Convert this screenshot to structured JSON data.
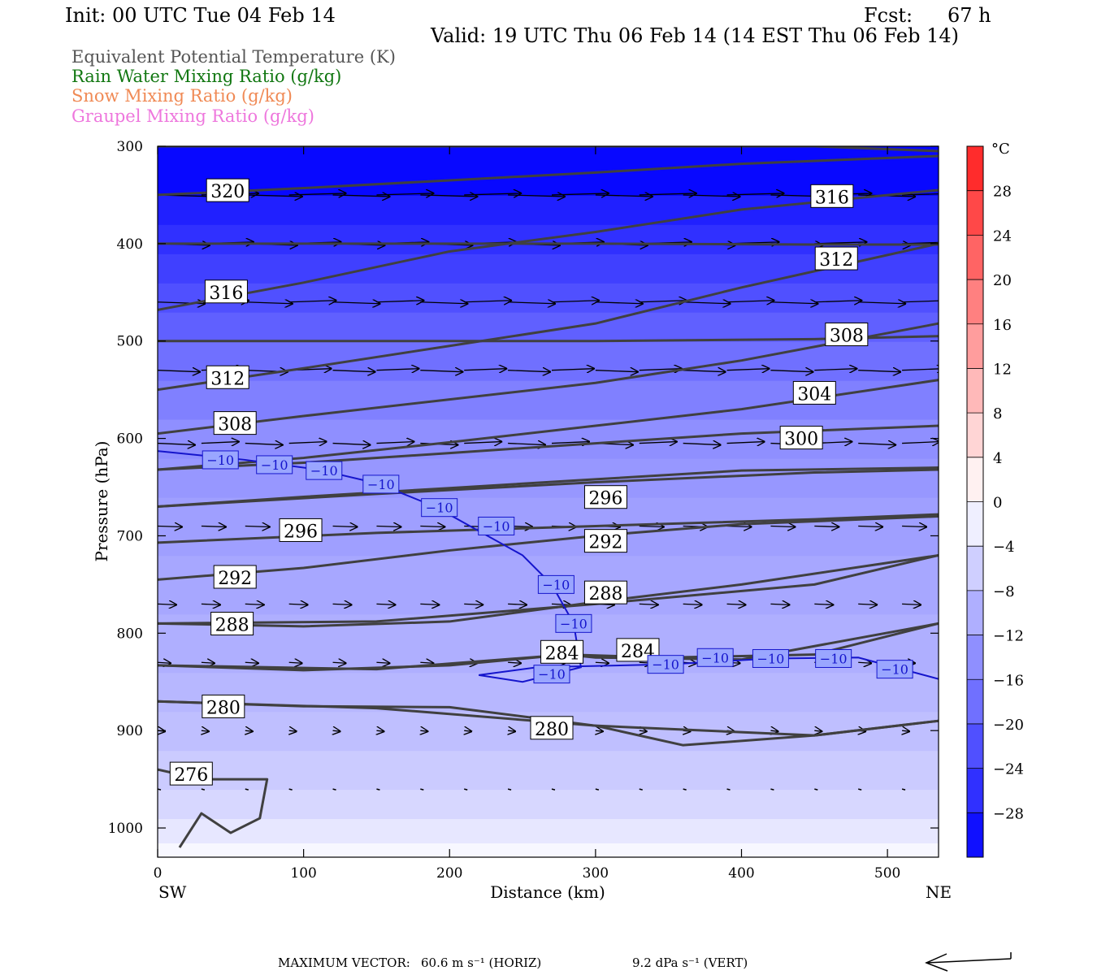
{
  "header": {
    "init": "Init: 00 UTC Tue 04 Feb 14",
    "fcst_label": "Fcst:",
    "fcst_value": "67 h",
    "valid": "Valid: 19 UTC Thu 06 Feb 14 (14 EST Thu 06 Feb 14)"
  },
  "legend": [
    {
      "text": "Equivalent Potential Temperature (K)",
      "color": "#555555"
    },
    {
      "text": "Rain Water Mixing Ratio (g/kg)",
      "color": "#117711"
    },
    {
      "text": "Snow Mixing Ratio (g/kg)",
      "color": "#f08a55"
    },
    {
      "text": "Graupel Mixing Ratio (g/kg)",
      "color": "#ee77dd"
    }
  ],
  "footer": {
    "max_vector_label": "MAXIMUM VECTOR:",
    "horiz": "60.6 m s⁻¹ (HORIZ)",
    "vert": "9.2 dPa s⁻¹ (VERT)"
  },
  "chart_data": {
    "type": "contour_cross_section",
    "xlabel": "Distance (km)",
    "ylabel": "Pressure (hPa)",
    "xlim": [
      0,
      535
    ],
    "ylim": [
      1030,
      300
    ],
    "x_ticks": [
      0,
      100,
      200,
      300,
      400,
      500
    ],
    "y_ticks": [
      300,
      400,
      500,
      600,
      700,
      800,
      900,
      1000
    ],
    "x_end_labels": {
      "left": "SW",
      "right": "NE"
    },
    "colorbar": {
      "unit": "°C",
      "tick_labels": [
        "28",
        "24",
        "20",
        "16",
        "12",
        "8",
        "4",
        "0",
        "−4",
        "−8",
        "−12",
        "−16",
        "−20",
        "−24",
        "−28"
      ],
      "tick_values": [
        28,
        24,
        20,
        16,
        12,
        8,
        4,
        0,
        -4,
        -8,
        -12,
        -16,
        -20,
        -24,
        -28
      ],
      "range": [
        -32,
        32
      ]
    },
    "temperature_bands_by_pressure": [
      {
        "p": 1030,
        "t": -1
      },
      {
        "p": 1015,
        "t": -3
      },
      {
        "p": 990,
        "t": -5
      },
      {
        "p": 960,
        "t": -6.5
      },
      {
        "p": 920,
        "t": -8
      },
      {
        "p": 880,
        "t": -9
      },
      {
        "p": 840,
        "t": -10
      },
      {
        "p": 780,
        "t": -11
      },
      {
        "p": 720,
        "t": -12
      },
      {
        "p": 660,
        "t": -13
      },
      {
        "p": 620,
        "t": -14
      },
      {
        "p": 580,
        "t": -16
      },
      {
        "p": 540,
        "t": -18
      },
      {
        "p": 500,
        "t": -20
      },
      {
        "p": 470,
        "t": -22
      },
      {
        "p": 440,
        "t": -24
      },
      {
        "p": 410,
        "t": -26
      },
      {
        "p": 380,
        "t": -28
      },
      {
        "p": 350,
        "t": -31
      },
      {
        "p": 300,
        "t": -33
      }
    ],
    "theta_e_contours": [
      {
        "label": "320",
        "points": [
          [
            0,
            350
          ],
          [
            100,
            343
          ],
          [
            200,
            335
          ],
          [
            300,
            327
          ],
          [
            400,
            318
          ],
          [
            535,
            310
          ]
        ],
        "label_at": [
          48,
          346
        ]
      },
      {
        "label": "316",
        "points": [
          [
            0,
            468
          ],
          [
            100,
            440
          ],
          [
            200,
            408
          ],
          [
            300,
            388
          ],
          [
            400,
            365
          ],
          [
            535,
            345
          ]
        ],
        "label_at": [
          47,
          450
        ]
      },
      {
        "label": "316",
        "points": [
          [
            0,
            300
          ],
          [
            150,
            300
          ],
          [
            300,
            300
          ],
          [
            450,
            300
          ],
          [
            535,
            305
          ]
        ],
        "label_at": [
          462,
          352
        ]
      },
      {
        "label": "312",
        "points": [
          [
            0,
            550
          ],
          [
            100,
            528
          ],
          [
            200,
            505
          ],
          [
            300,
            482
          ],
          [
            400,
            445
          ],
          [
            535,
            400
          ]
        ],
        "label_at": [
          48,
          538
        ]
      },
      {
        "label": "312",
        "points": [
          [
            0,
            400
          ],
          [
            150,
            400
          ],
          [
            300,
            400
          ],
          [
            450,
            401
          ],
          [
            535,
            401
          ]
        ],
        "label_at": [
          465,
          416
        ]
      },
      {
        "label": "308",
        "points": [
          [
            0,
            595
          ],
          [
            100,
            577
          ],
          [
            200,
            560
          ],
          [
            300,
            543
          ],
          [
            400,
            520
          ],
          [
            535,
            482
          ]
        ],
        "label_at": [
          53,
          585
        ]
      },
      {
        "label": "308",
        "points": [
          [
            0,
            500
          ],
          [
            150,
            500
          ],
          [
            300,
            500
          ],
          [
            450,
            498
          ],
          [
            535,
            495
          ]
        ],
        "label_at": [
          472,
          494
        ]
      },
      {
        "label": "304",
        "points": [
          [
            0,
            632
          ],
          [
            100,
            620
          ],
          [
            200,
            604
          ],
          [
            300,
            587
          ],
          [
            400,
            570
          ],
          [
            535,
            540
          ]
        ],
        "label_at": [
          450,
          554
        ]
      },
      {
        "label": "300",
        "points": [
          [
            0,
            632
          ],
          [
            100,
            625
          ],
          [
            200,
            615
          ],
          [
            300,
            605
          ],
          [
            400,
            595
          ],
          [
            535,
            587
          ]
        ],
        "label_at": [
          441,
          600
        ]
      },
      {
        "label": "296",
        "points": [
          [
            0,
            670
          ],
          [
            100,
            660
          ],
          [
            200,
            651
          ],
          [
            300,
            642
          ],
          [
            400,
            633
          ],
          [
            535,
            630
          ]
        ],
        "label_at": [
          98,
          695
        ]
      },
      {
        "label": "296",
        "points": [
          [
            0,
            670
          ],
          [
            150,
            657
          ],
          [
            300,
            645
          ],
          [
            450,
            635
          ],
          [
            535,
            632
          ]
        ],
        "label_at": [
          307,
          661
        ]
      },
      {
        "label": "292",
        "points": [
          [
            0,
            745
          ],
          [
            100,
            733
          ],
          [
            200,
            715
          ],
          [
            300,
            700
          ],
          [
            400,
            688
          ],
          [
            535,
            680
          ]
        ],
        "label_at": [
          53,
          743
        ]
      },
      {
        "label": "292",
        "points": [
          [
            0,
            707
          ],
          [
            150,
            697
          ],
          [
            300,
            690
          ],
          [
            450,
            683
          ],
          [
            535,
            678
          ]
        ],
        "label_at": [
          307,
          706
        ]
      },
      {
        "label": "288",
        "points": [
          [
            0,
            790
          ],
          [
            100,
            793
          ],
          [
            200,
            788
          ],
          [
            300,
            768
          ],
          [
            400,
            750
          ],
          [
            535,
            720
          ]
        ],
        "label_at": [
          51,
          791
        ]
      },
      {
        "label": "288",
        "points": [
          [
            0,
            790
          ],
          [
            150,
            788
          ],
          [
            300,
            770
          ],
          [
            450,
            750
          ],
          [
            535,
            720
          ]
        ],
        "label_at": [
          307,
          759
        ]
      },
      {
        "label": "284",
        "points": [
          [
            0,
            833
          ],
          [
            100,
            838
          ],
          [
            200,
            833
          ],
          [
            280,
            822
          ],
          [
            300,
            825
          ],
          [
            400,
            827
          ],
          [
            535,
            790
          ]
        ],
        "label_at": [
          277,
          820
        ]
      },
      {
        "label": "284",
        "points": [
          [
            0,
            833
          ],
          [
            150,
            837
          ],
          [
            280,
            822
          ],
          [
            350,
            825
          ],
          [
            450,
            822
          ],
          [
            535,
            790
          ]
        ],
        "label_at": [
          329,
          818
        ]
      },
      {
        "label": "280",
        "points": [
          [
            0,
            870
          ],
          [
            100,
            875
          ],
          [
            200,
            876
          ],
          [
            300,
            895
          ],
          [
            360,
            915
          ],
          [
            450,
            905
          ],
          [
            535,
            890
          ]
        ],
        "label_at": [
          45,
          876
        ]
      },
      {
        "label": "280",
        "points": [
          [
            0,
            870
          ],
          [
            150,
            877
          ],
          [
            300,
            895
          ],
          [
            450,
            905
          ],
          [
            535,
            890
          ]
        ],
        "label_at": [
          270,
          898
        ]
      },
      {
        "label": "276",
        "points": [
          [
            0,
            940
          ],
          [
            30,
            950
          ],
          [
            75,
            950
          ],
          [
            70,
            990
          ],
          [
            50,
            1005
          ],
          [
            30,
            985
          ],
          [
            15,
            1020
          ]
        ],
        "label_at": [
          23,
          945
        ]
      }
    ],
    "isotherm_minus10": {
      "label": "−10",
      "points": [
        [
          0,
          613
        ],
        [
          60,
          622
        ],
        [
          110,
          632
        ],
        [
          150,
          646
        ],
        [
          190,
          670
        ],
        [
          220,
          695
        ],
        [
          250,
          720
        ],
        [
          270,
          750
        ],
        [
          285,
          790
        ],
        [
          290,
          835
        ],
        [
          250,
          850
        ],
        [
          220,
          843
        ],
        [
          260,
          835
        ],
        [
          350,
          832
        ],
        [
          420,
          826
        ],
        [
          480,
          825
        ],
        [
          535,
          847
        ]
      ],
      "labels_at": [
        [
          43,
          622
        ],
        [
          80,
          627
        ],
        [
          114,
          633
        ],
        [
          153,
          647
        ],
        [
          193,
          671
        ],
        [
          232,
          690
        ],
        [
          273,
          750
        ],
        [
          285,
          790
        ],
        [
          270,
          842
        ],
        [
          348,
          832
        ],
        [
          382,
          825
        ],
        [
          420,
          826
        ],
        [
          463,
          826
        ],
        [
          505,
          837
        ]
      ]
    },
    "wind_vector_rows_hPa": [
      350,
      400,
      460,
      530,
      605,
      690,
      770,
      830,
      900,
      960
    ],
    "max_vector_horiz_m_s": 60.6,
    "max_vector_vert_dPa_s": 9.2
  }
}
